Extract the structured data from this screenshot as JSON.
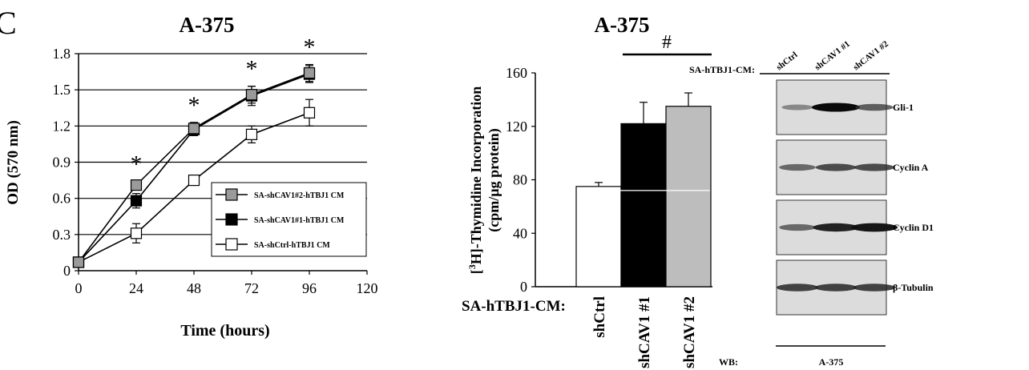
{
  "panel_letter": "C",
  "chart_data": [
    {
      "type": "line",
      "title": "A-375",
      "xlabel": "Time (hours)",
      "ylabel": "OD (570 nm)",
      "xlim": [
        0,
        120
      ],
      "ylim": [
        0,
        1.8
      ],
      "xticks": [
        0,
        24,
        48,
        72,
        96,
        120
      ],
      "yticks": [
        0,
        0.3,
        0.6,
        0.9,
        1.2,
        1.5,
        1.8
      ],
      "ytick_labels": [
        "0",
        "0.3",
        "0.6",
        "0.9",
        "1.2",
        "1.5",
        "1.8"
      ],
      "grid": "horizontal",
      "legend_position": "right",
      "series": [
        {
          "name": "SA-shCAV1#2-hTBJ1 CM",
          "marker_fill": "#9a9a9a",
          "x": [
            0,
            24,
            48,
            72,
            96
          ],
          "y": [
            0.07,
            0.71,
            1.18,
            1.46,
            1.64
          ],
          "err": [
            0.02,
            0.03,
            0.05,
            0.07,
            0.07
          ]
        },
        {
          "name": "SA-shCAV1#1-hTBJ1 CM",
          "marker_fill": "#000000",
          "x": [
            0,
            24,
            48,
            72,
            96
          ],
          "y": [
            0.07,
            0.58,
            1.17,
            1.45,
            1.63
          ],
          "err": [
            0.02,
            0.06,
            0.05,
            0.08,
            0.07
          ]
        },
        {
          "name": "SA-shCtrl-hTBJ1 CM",
          "marker_fill": "#ffffff",
          "x": [
            0,
            24,
            48,
            72,
            96
          ],
          "y": [
            0.07,
            0.31,
            0.75,
            1.13,
            1.31
          ],
          "err": [
            0.02,
            0.08,
            0.04,
            0.07,
            0.11
          ]
        }
      ],
      "annotations": [
        {
          "text": "*",
          "x": 24
        },
        {
          "text": "*",
          "x": 48
        },
        {
          "text": "*",
          "x": 72
        },
        {
          "text": "*",
          "x": 96
        }
      ]
    },
    {
      "type": "bar",
      "title": "A-375",
      "ylabel_line1": "Thymidine Incorporation",
      "ylabel_prefix": "[",
      "ylabel_sup": "3",
      "ylabel_suffix": "H]-",
      "ylabel_line2": "(cpm/µg protein)",
      "xlabel_left": "SA-hTBJ1-CM:",
      "categories": [
        "shCtrl",
        "shCAV1 #1",
        "shCAV1 #2"
      ],
      "values": [
        75,
        122,
        135
      ],
      "errors": [
        3,
        16,
        10
      ],
      "colors": [
        "#ffffff",
        "#000000",
        "#bdbdbd"
      ],
      "ylim": [
        0,
        160
      ],
      "yticks": [
        "0",
        "40",
        "80",
        "120",
        "160"
      ],
      "gridline_at": 72,
      "significance": "#"
    }
  ],
  "western_blot": {
    "row_label": "SA-hTBJ1-CM:",
    "lanes": [
      "shCtrl",
      "shCAV1 #1",
      "shCAV1 #2"
    ],
    "proteins": [
      {
        "name": "Gli-1",
        "intensities": [
          0.35,
          1.0,
          0.6
        ]
      },
      {
        "name": "Cyclin A",
        "intensities": [
          0.55,
          0.7,
          0.7
        ]
      },
      {
        "name": "Cyclin D1",
        "intensities": [
          0.55,
          0.9,
          0.95
        ]
      },
      {
        "name": "β-Tubulin",
        "intensities": [
          0.75,
          0.75,
          0.75
        ]
      }
    ],
    "footer_label": "WB:",
    "footer_value": "A-375"
  }
}
